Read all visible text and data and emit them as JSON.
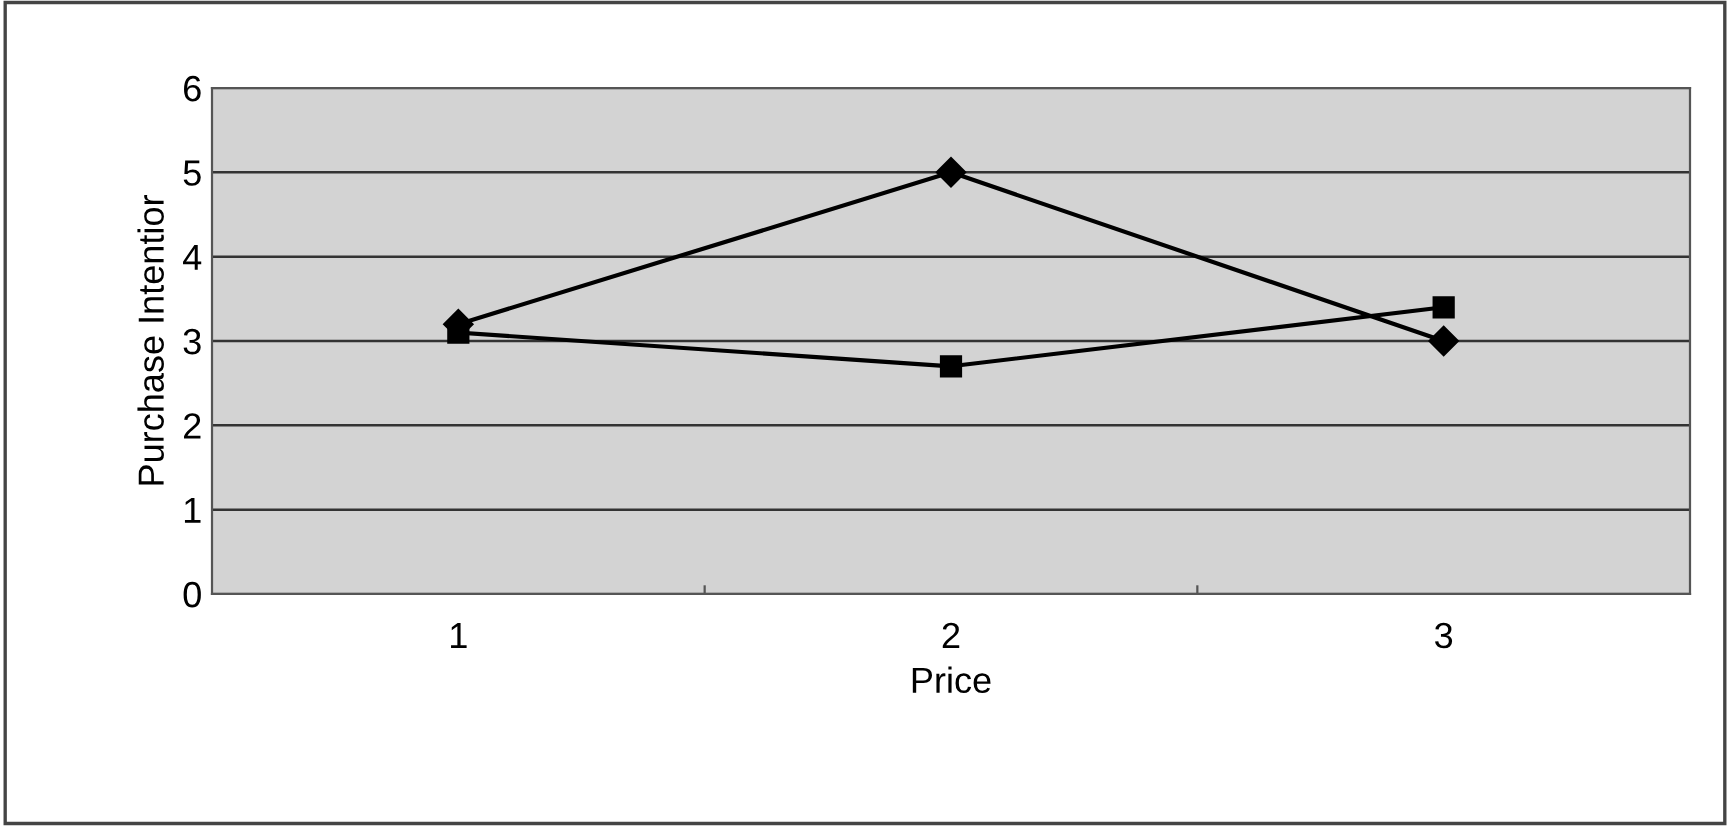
{
  "chart_data": {
    "type": "line",
    "xlabel": "Price",
    "ylabel": "Purchase Intentior",
    "categories": [
      "1",
      "2",
      "3"
    ],
    "series": [
      {
        "color": "#000000",
        "marker": "diamond",
        "values": [
          3.2,
          5.0,
          3.0
        ]
      },
      {
        "color": "#000000",
        "marker": "square",
        "values": [
          3.1,
          2.7,
          3.4
        ]
      }
    ],
    "ylim": [
      0,
      6
    ],
    "yticks": [
      0,
      1,
      2,
      3,
      4,
      5,
      6
    ],
    "grid": "y",
    "line_style": "solid"
  }
}
